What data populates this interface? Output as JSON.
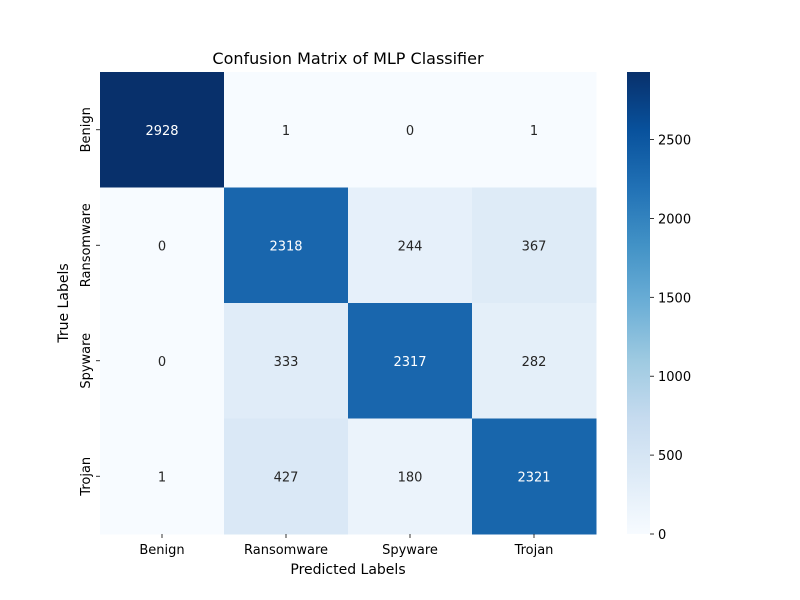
{
  "chart_data": {
    "type": "heatmap",
    "title": "Confusion Matrix of MLP Classifier",
    "xlabel": "Predicted Labels",
    "ylabel": "True Labels",
    "x_categories": [
      "Benign",
      "Ransomware",
      "Spyware",
      "Trojan"
    ],
    "y_categories": [
      "Benign",
      "Ransomware",
      "Spyware",
      "Trojan"
    ],
    "values": [
      [
        2928,
        1,
        0,
        1
      ],
      [
        0,
        2318,
        244,
        367
      ],
      [
        0,
        333,
        2317,
        282
      ],
      [
        1,
        427,
        180,
        2321
      ]
    ],
    "colormap": "Blues",
    "colorbar": {
      "min": 0,
      "max": 2928,
      "ticks": [
        0,
        500,
        1000,
        1500,
        2000,
        2500
      ]
    }
  }
}
